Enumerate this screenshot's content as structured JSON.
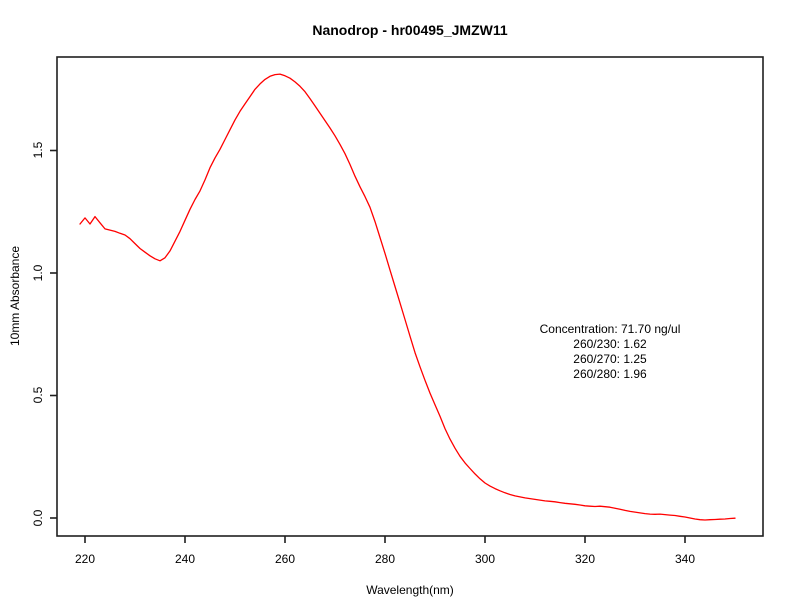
{
  "title": "Nanodrop - hr00495_JMZW11",
  "chart_data": {
    "type": "line",
    "title": "Nanodrop - hr00495_JMZW11",
    "xlabel": "Wavelength(nm)",
    "ylabel": "10mm Absorbance",
    "x_ticks": [
      220,
      240,
      260,
      280,
      300,
      320,
      340
    ],
    "y_ticks": [
      0.0,
      0.5,
      1.0,
      1.5
    ],
    "y_tick_labels": [
      "0.0",
      "0.5",
      "1.0",
      "1.5"
    ],
    "xlim": [
      214.4,
      355.6
    ],
    "ylim": [
      -0.09,
      1.89
    ],
    "grid": false,
    "legend_position": "none",
    "line_color": "#ff0000",
    "frame_color": "#1f1f1f",
    "annotation": [
      "Concentration: 71.70 ng/ul",
      "260/230: 1.62",
      "260/270: 1.25",
      "260/280: 1.96"
    ],
    "series": [
      {
        "name": "absorbance",
        "x": [
          219,
          220,
          221,
          222,
          223,
          224,
          225,
          226,
          227,
          228,
          229,
          230,
          231,
          232,
          233,
          234,
          235,
          236,
          237,
          238,
          239,
          240,
          241,
          242,
          243,
          244,
          245,
          246,
          247,
          248,
          249,
          250,
          251,
          252,
          253,
          254,
          255,
          256,
          257,
          258,
          259,
          260,
          261,
          262,
          263,
          264,
          265,
          266,
          267,
          268,
          269,
          270,
          271,
          272,
          273,
          274,
          275,
          276,
          277,
          278,
          279,
          280,
          281,
          282,
          283,
          284,
          285,
          286,
          287,
          288,
          289,
          290,
          291,
          292,
          293,
          294,
          295,
          296,
          297,
          298,
          299,
          300,
          301,
          302,
          303,
          304,
          305,
          306,
          307,
          308,
          309,
          310,
          311,
          312,
          313,
          314,
          315,
          316,
          317,
          318,
          319,
          320,
          321,
          322,
          323,
          324,
          325,
          326,
          327,
          328,
          329,
          330,
          331,
          332,
          333,
          334,
          335,
          336,
          337,
          338,
          339,
          340,
          341,
          342,
          343,
          344,
          345,
          346,
          347,
          348,
          349,
          350
        ],
        "y": [
          1.2,
          1.225,
          1.2,
          1.23,
          1.205,
          1.18,
          1.175,
          1.17,
          1.162,
          1.155,
          1.14,
          1.12,
          1.1,
          1.085,
          1.07,
          1.058,
          1.05,
          1.062,
          1.09,
          1.13,
          1.17,
          1.215,
          1.26,
          1.3,
          1.335,
          1.38,
          1.43,
          1.47,
          1.505,
          1.545,
          1.585,
          1.625,
          1.66,
          1.69,
          1.72,
          1.75,
          1.772,
          1.79,
          1.803,
          1.81,
          1.812,
          1.805,
          1.795,
          1.78,
          1.762,
          1.74,
          1.712,
          1.682,
          1.652,
          1.622,
          1.592,
          1.56,
          1.525,
          1.487,
          1.443,
          1.395,
          1.352,
          1.312,
          1.268,
          1.21,
          1.145,
          1.08,
          1.012,
          0.945,
          0.878,
          0.81,
          0.742,
          0.675,
          0.617,
          0.562,
          0.51,
          0.462,
          0.415,
          0.365,
          0.322,
          0.285,
          0.252,
          0.225,
          0.202,
          0.18,
          0.16,
          0.143,
          0.13,
          0.12,
          0.111,
          0.103,
          0.096,
          0.09,
          0.086,
          0.082,
          0.079,
          0.076,
          0.073,
          0.07,
          0.068,
          0.066,
          0.063,
          0.06,
          0.058,
          0.056,
          0.053,
          0.05,
          0.048,
          0.047,
          0.048,
          0.046,
          0.044,
          0.04,
          0.036,
          0.031,
          0.027,
          0.024,
          0.021,
          0.018,
          0.016,
          0.015,
          0.016,
          0.014,
          0.012,
          0.01,
          0.007,
          0.004,
          0.0,
          -0.004,
          -0.007,
          -0.008,
          -0.007,
          -0.006,
          -0.005,
          -0.004,
          -0.002,
          -0.001
        ]
      }
    ]
  }
}
